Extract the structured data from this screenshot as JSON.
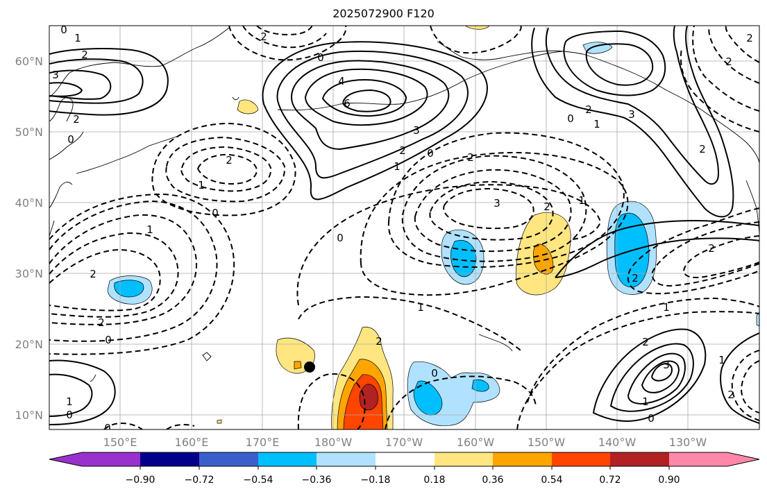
{
  "title": "2025072900 F120",
  "map": {
    "lon_labels": [
      "150°E",
      "160°E",
      "170°E",
      "180°W",
      "170°W",
      "160°W",
      "150°W",
      "140°W",
      "130°W"
    ],
    "lat_labels": [
      "60°N",
      "50°N",
      "40°N",
      "30°N",
      "20°N",
      "10°N"
    ]
  },
  "colorbar": {
    "ticks": [
      "−0.90",
      "−0.72",
      "−0.54",
      "−0.36",
      "−0.18",
      "0.18",
      "0.36",
      "0.54",
      "0.72",
      "0.90"
    ],
    "colors": [
      "#9932cc",
      "#00008b",
      "#3a5fcd",
      "#00bfff",
      "#b0e2ff",
      "#ffffff",
      "#ffe680",
      "#ffa500",
      "#ff4500",
      "#b22222",
      "#ff88aa"
    ]
  },
  "shading_colors": {
    "pos1": "#ffe680",
    "pos2": "#ffa500",
    "pos3": "#ff4500",
    "pos4": "#b22222",
    "neg1": "#b0e2ff",
    "neg2": "#00bfff"
  },
  "contour_labels": {
    "l01": "0",
    "l02": "1",
    "l03": "2",
    "l04": "3",
    "l05": "2",
    "l06": "0",
    "l07": "0",
    "l08": "2",
    "l09": "4",
    "l10": "6",
    "l11": "3",
    "l12": "2",
    "l13": "0",
    "l14": "1",
    "l15": "2",
    "l16": "1",
    "l17": "0",
    "l18": "2",
    "l19": "3",
    "l20": "2",
    "l21": "1",
    "l22": "0",
    "l23": "1",
    "l24": "2",
    "l25": "0",
    "l26": "2",
    "l27": "3",
    "l28": "0",
    "l29": "1",
    "l30": "2",
    "l31": "2",
    "l32": "2",
    "l33": "1",
    "l34": "2",
    "l35": "1",
    "l36": "2",
    "l37": "2",
    "l38": "0",
    "l39": "1",
    "l40": "3",
    "l41": "1",
    "l42": "0",
    "l43": "1",
    "l44": "2",
    "l45": "0",
    "l46": "0",
    "l47": "2",
    "l48": "2"
  }
}
